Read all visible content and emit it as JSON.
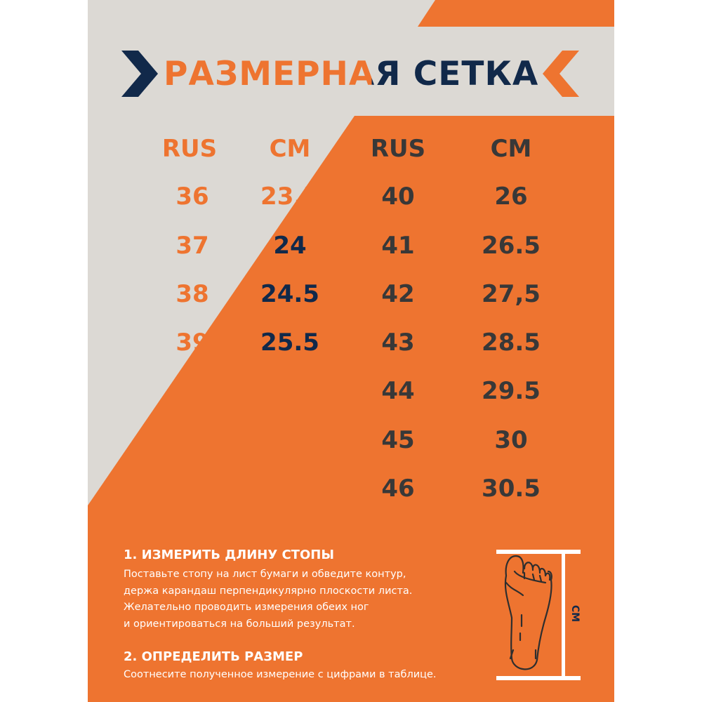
{
  "title": "РАЗМЕРНАЯ СЕТКА",
  "colors": {
    "orange": "#ee7430",
    "navy": "#11294a",
    "gray": "#dcd9d4",
    "dark": "#383838"
  },
  "table_left": {
    "headers": [
      "RUS",
      "CM"
    ],
    "rows": [
      [
        "36",
        "23.5"
      ],
      [
        "37",
        "24"
      ],
      [
        "38",
        "24.5"
      ],
      [
        "39",
        "25.5"
      ]
    ]
  },
  "table_right": {
    "headers": [
      "RUS",
      "CM"
    ],
    "rows": [
      [
        "40",
        "26"
      ],
      [
        "41",
        "26.5"
      ],
      [
        "42",
        "27,5"
      ],
      [
        "43",
        "28.5"
      ],
      [
        "44",
        "29.5"
      ],
      [
        "45",
        "30"
      ],
      [
        "46",
        "30.5"
      ]
    ]
  },
  "step1": {
    "heading": "1. ИЗМЕРИТЬ ДЛИНУ СТОПЫ",
    "lines": [
      "Поставьте стопу на лист бумаги и обведите контур,",
      "держа карандаш перпендикулярно плоскости листа.",
      "Желательно проводить измерения обеих ног",
      "и ориентироваться на больший результат."
    ]
  },
  "step2": {
    "heading": "2. ОПРЕДЕЛИТЬ РАЗМЕР",
    "lines": [
      "Соотнесите полученное измерение с цифрами в таблице."
    ]
  },
  "diagram": {
    "unit_label": "СМ",
    "icon": "foot-outline-icon"
  }
}
